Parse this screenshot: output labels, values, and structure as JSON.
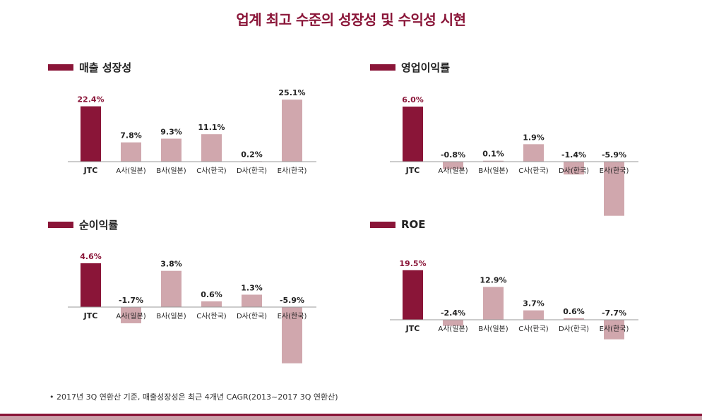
{
  "title": "업계 최고 수준의 성장성 및 수익성 시현",
  "footnote": "• 2017년 3Q 연환산 기준, 매출성장성은 최근 4개년 CAGR(2013~2017 3Q 연환산)",
  "colors": {
    "highlight": "#8a1538",
    "other": "#d0a7ad",
    "axis": "#999999"
  },
  "chart_data": [
    {
      "type": "bar",
      "title": "매출 성장성",
      "categories": [
        "JTC",
        "A사(일본)",
        "B사(일본)",
        "C사(한국)",
        "D사(한국)",
        "E사(한국)"
      ],
      "values": [
        22.4,
        7.8,
        9.3,
        11.1,
        0.2,
        25.1
      ],
      "labels": [
        "22.4%",
        "7.8%",
        "9.3%",
        "11.1%",
        "0.2%",
        "25.1%"
      ]
    },
    {
      "type": "bar",
      "title": "영업이익률",
      "categories": [
        "JTC",
        "A사(일본)",
        "B사(일본)",
        "C사(한국)",
        "D사(한국)",
        "E사(한국)"
      ],
      "values": [
        6.0,
        -0.8,
        0.1,
        1.9,
        -1.4,
        -5.9
      ],
      "labels": [
        "6.0%",
        "-0.8%",
        "0.1%",
        "1.9%",
        "-1.4%",
        "-5.9%"
      ]
    },
    {
      "type": "bar",
      "title": "순이익률",
      "categories": [
        "JTC",
        "A사(일본)",
        "B사(일본)",
        "C사(한국)",
        "D사(한국)",
        "E사(한국)"
      ],
      "values": [
        4.6,
        -1.7,
        3.8,
        0.6,
        1.3,
        -5.9
      ],
      "labels": [
        "4.6%",
        "-1.7%",
        "3.8%",
        "0.6%",
        "1.3%",
        "-5.9%"
      ]
    },
    {
      "type": "bar",
      "title": "ROE",
      "categories": [
        "JTC",
        "A사(일본)",
        "B사(일본)",
        "C사(한국)",
        "D사(한국)",
        "E사(한국)"
      ],
      "values": [
        19.5,
        -2.4,
        12.9,
        3.7,
        0.6,
        -7.7
      ],
      "labels": [
        "19.5%",
        "-2.4%",
        "12.9%",
        "3.7%",
        "0.6%",
        "-7.7%"
      ]
    }
  ]
}
